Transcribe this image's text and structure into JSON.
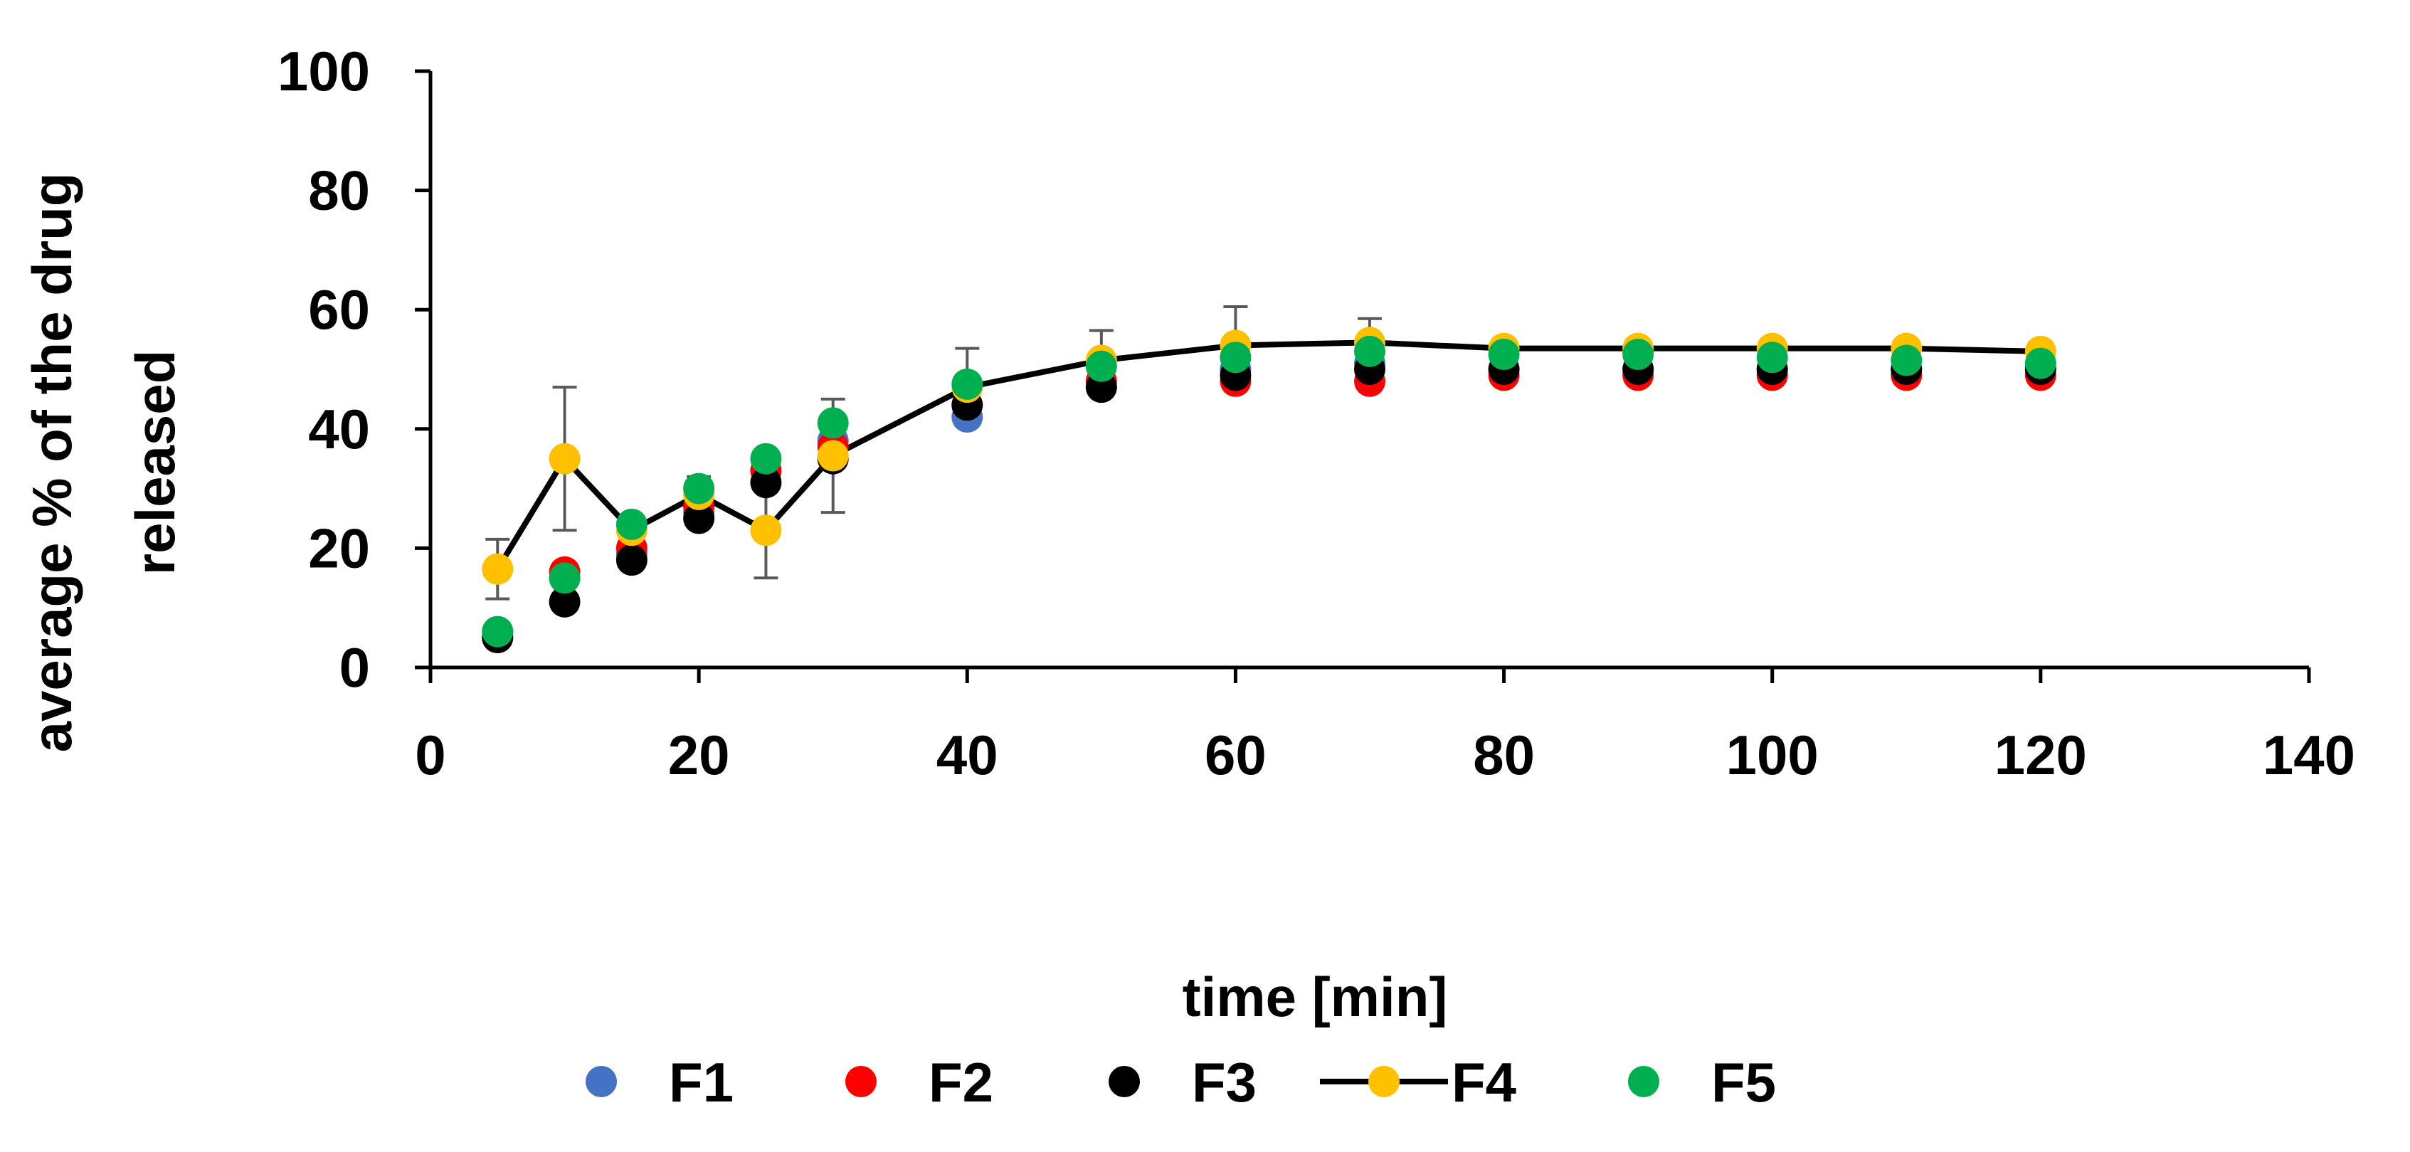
{
  "chart_data": {
    "type": "scatter",
    "title": "",
    "xlabel": "time [min]",
    "ylabel_lines": [
      "average % of the drug",
      "released"
    ],
    "xlim": [
      0,
      140
    ],
    "ylim": [
      0,
      100
    ],
    "x_ticks": [
      0,
      20,
      40,
      60,
      80,
      100,
      120,
      140
    ],
    "y_ticks": [
      0,
      20,
      40,
      60,
      80,
      100
    ],
    "x_tick_labels": [
      "0",
      "20",
      "40",
      "60",
      "80",
      "100",
      "120",
      "140"
    ],
    "y_tick_labels": [
      "0",
      "20",
      "40",
      "60",
      "80",
      "100"
    ],
    "grid": false,
    "legend_position": "bottom",
    "x": [
      5,
      10,
      15,
      20,
      25,
      30,
      40,
      50,
      60,
      70,
      80,
      90,
      100,
      110,
      120
    ],
    "series": [
      {
        "name": "F1",
        "color": "#4472C4",
        "line": false,
        "values": [
          6,
          15,
          19,
          26,
          33,
          38,
          42,
          47,
          50,
          51,
          50,
          50,
          50,
          50,
          50
        ]
      },
      {
        "name": "F2",
        "color": "#FF0000",
        "line": false,
        "values": [
          5,
          16,
          20,
          27,
          33,
          37,
          44,
          48,
          48,
          48,
          49,
          49,
          49,
          49,
          49
        ]
      },
      {
        "name": "F3",
        "color": "#000000",
        "line": false,
        "values": [
          5,
          11,
          18,
          25,
          31,
          35,
          44,
          47,
          49,
          50,
          50,
          50,
          50,
          50,
          50
        ]
      },
      {
        "name": "F4",
        "color": "#FFC000",
        "line": true,
        "line_color": "#000000",
        "values": [
          16.5,
          35,
          23,
          29,
          23,
          35.5,
          47,
          51.5,
          54,
          54.5,
          53.5,
          53.5,
          53.5,
          53.5,
          53
        ],
        "errors": [
          5,
          12,
          2,
          3,
          8,
          9.5,
          6.5,
          5,
          6.5,
          4,
          1.5,
          1.5,
          1.5,
          1.5,
          1.5
        ]
      },
      {
        "name": "F5",
        "color": "#00B050",
        "line": false,
        "values": [
          6,
          15,
          24,
          30,
          35,
          41,
          47.5,
          50.5,
          52,
          53,
          52.5,
          52.5,
          52,
          51.5,
          51
        ]
      }
    ]
  }
}
